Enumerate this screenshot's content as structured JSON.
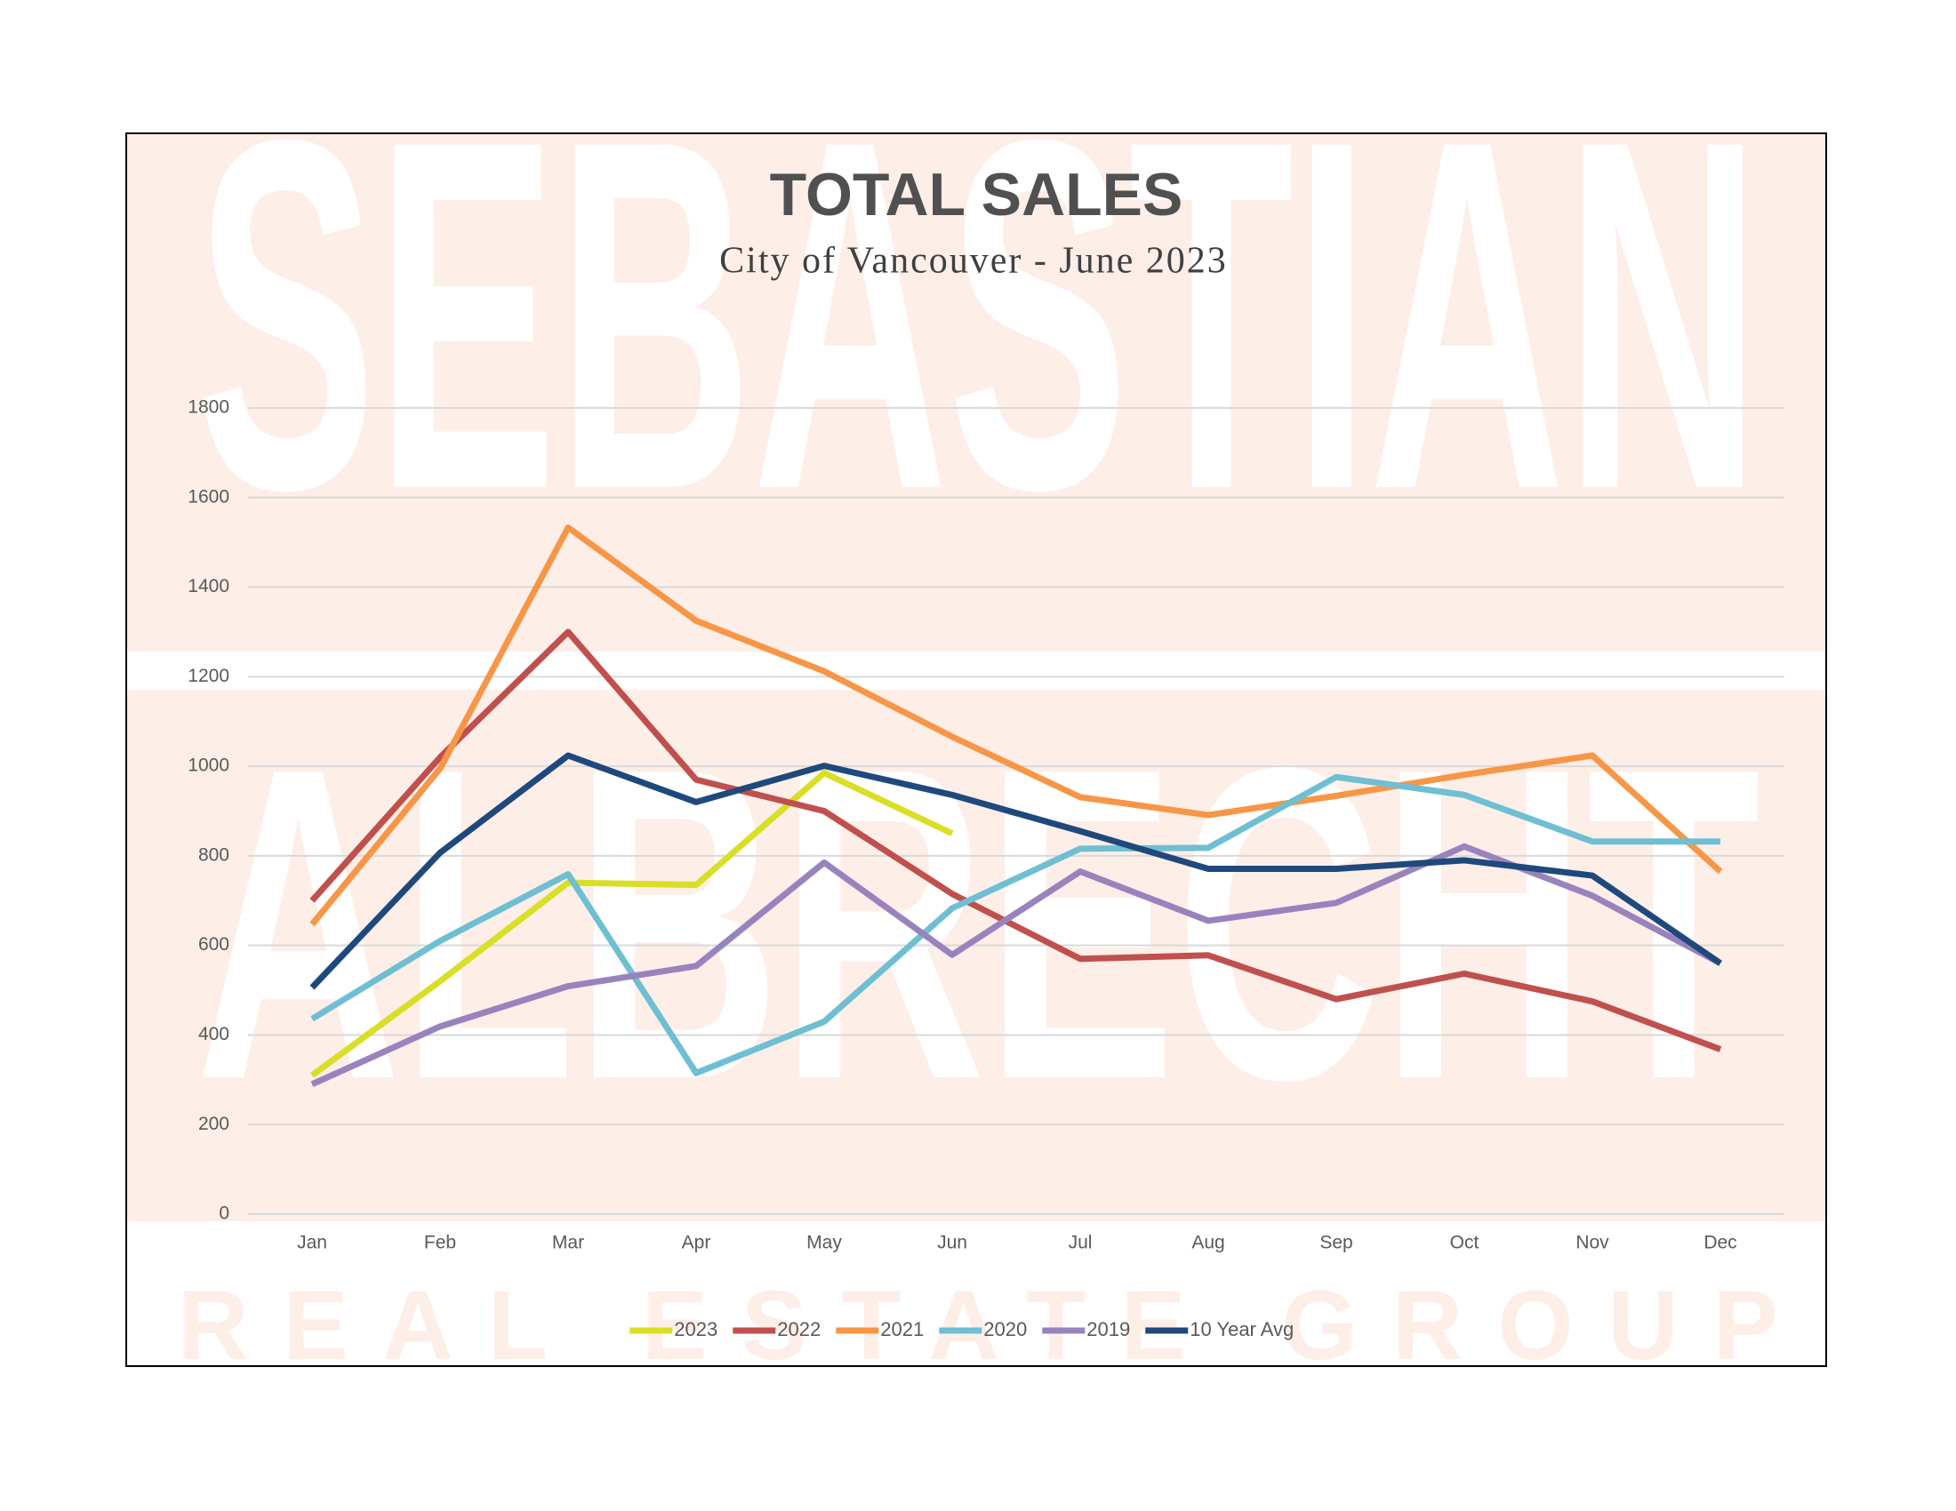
{
  "chart_data": {
    "type": "line",
    "title": "TOTAL SALES",
    "subtitle": "City of Vancouver - June 2023",
    "watermark": [
      "SEBASTIAN",
      "ALBRECHT",
      "REAL ESTATE GROUP"
    ],
    "categories": [
      "Jan",
      "Feb",
      "Mar",
      "Apr",
      "May",
      "Jun",
      "Jul",
      "Aug",
      "Sep",
      "Oct",
      "Nov",
      "Dec"
    ],
    "series": [
      {
        "name": "2023",
        "color": "#d9df26",
        "values": [
          310,
          520,
          740,
          735,
          985,
          850,
          null,
          null,
          null,
          null,
          null,
          null
        ]
      },
      {
        "name": "2022",
        "color": "#c0504d",
        "values": [
          700,
          1020,
          1300,
          970,
          900,
          715,
          570,
          578,
          480,
          537,
          475,
          368
        ]
      },
      {
        "name": "2021",
        "color": "#f79646",
        "values": [
          647,
          995,
          1533,
          1325,
          1212,
          1066,
          931,
          891,
          934,
          981,
          1024,
          765
        ]
      },
      {
        "name": "2020",
        "color": "#6fbfd3",
        "values": [
          436,
          610,
          759,
          315,
          430,
          683,
          816,
          818,
          976,
          936,
          832,
          832
        ]
      },
      {
        "name": "2019",
        "color": "#9983bd",
        "values": [
          290,
          419,
          509,
          554,
          785,
          579,
          765,
          655,
          695,
          821,
          711,
          560
        ]
      },
      {
        "name": "10 Year Avg",
        "color": "#1f497d",
        "values": [
          506,
          807,
          1024,
          920,
          1001,
          936,
          855,
          771,
          771,
          790,
          756,
          560
        ]
      }
    ],
    "ylim": [
      0,
      1800
    ],
    "yticks": [
      0,
      200,
      400,
      600,
      800,
      1000,
      1200,
      1400,
      1600,
      1800
    ],
    "grid": true,
    "legend": "bottom"
  }
}
